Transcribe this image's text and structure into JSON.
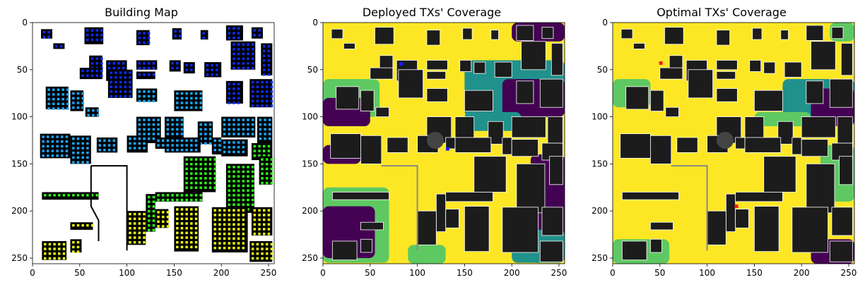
{
  "chart_data": [
    {
      "type": "heatmap",
      "title": "Building Map",
      "xlim": [
        0,
        255
      ],
      "ylim": [
        255,
        0
      ],
      "xticks": [
        "0",
        "50",
        "100",
        "150",
        "200",
        "250"
      ],
      "yticks": [
        "0",
        "50",
        "100",
        "150",
        "200",
        "250"
      ],
      "grid": false,
      "colors": {
        "building": "#000000",
        "background": "#ffffff"
      },
      "tx_marker_colors": [
        "#0a2cff",
        "#1aa7ff",
        "#2cff18",
        "#f0ff10"
      ]
    },
    {
      "type": "heatmap",
      "title": "Deployed TXs' Coverage",
      "xlim": [
        0,
        255
      ],
      "ylim": [
        255,
        0
      ],
      "xticks": [
        "0",
        "50",
        "100",
        "150",
        "200",
        "250"
      ],
      "yticks": [
        "0",
        "50",
        "100",
        "150",
        "200",
        "250"
      ],
      "grid": false,
      "colors": {
        "high": "#fde725",
        "mid": "#5ec962",
        "low": "#21918c",
        "none": "#440154",
        "building": "#1c1c1c"
      },
      "tx_points": [
        {
          "x": 83,
          "y": 44
        },
        {
          "x": 132,
          "y": 134
        }
      ],
      "tx_color": "#1a1aff"
    },
    {
      "type": "heatmap",
      "title": "Optimal TXs' Coverage",
      "xlim": [
        0,
        255
      ],
      "ylim": [
        255,
        0
      ],
      "xticks": [
        "0",
        "50",
        "100",
        "150",
        "200",
        "250"
      ],
      "yticks": [
        "0",
        "50",
        "100",
        "150",
        "200",
        "250"
      ],
      "grid": false,
      "colors": {
        "high": "#fde725",
        "mid": "#5ec962",
        "low": "#21918c",
        "none": "#440154",
        "building": "#1c1c1c"
      },
      "tx_points": [
        {
          "x": 51,
          "y": 43
        },
        {
          "x": 131,
          "y": 195
        }
      ],
      "tx_color": "#ff1a1a"
    }
  ]
}
